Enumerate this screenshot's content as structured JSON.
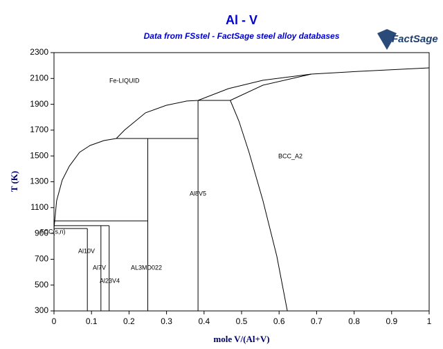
{
  "chart_data": {
    "type": "phase-diagram",
    "title": "Al - V",
    "subtitle": "Data from FSstel - FactSage steel alloy databases",
    "logo": "FactSage",
    "x_label": "mole V/(Al+V)",
    "y_label": "T (K)",
    "xlim": [
      0,
      1
    ],
    "ylim": [
      300,
      2300
    ],
    "xticks": [
      0,
      0.1,
      0.2,
      0.3,
      0.4,
      0.5,
      0.6,
      0.7,
      0.8,
      0.9,
      1
    ],
    "yticks": [
      300,
      500,
      700,
      900,
      1100,
      1300,
      1500,
      1700,
      1900,
      2100,
      2300
    ],
    "color": "#000000",
    "series": [
      {
        "x": [
          0,
          0.007,
          0.022,
          0.041,
          0.068,
          0.096,
          0.133,
          0.166,
          0.188,
          0.244,
          0.299,
          0.354,
          0.384,
          0.465,
          0.557,
          0.686,
          0.815,
          1
        ],
        "y": [
          938,
          1153,
          1313,
          1421,
          1528,
          1581,
          1619,
          1635,
          1700,
          1834,
          1892,
          1925,
          1930,
          2021,
          2086,
          2134,
          2155,
          2182
        ]
      },
      {
        "x": [
          0.47,
          0.557,
          0.686
        ],
        "y": [
          1930,
          2048,
          2134
        ]
      },
      {
        "x": [
          0.384,
          0.47
        ],
        "y": [
          1930,
          1930
        ]
      },
      {
        "x": [
          0.47,
          0.493,
          0.52,
          0.557,
          0.594,
          0.622
        ],
        "y": [
          1930,
          1769,
          1528,
          1153,
          724,
          300
        ]
      },
      {
        "x": [
          0.384,
          0.384
        ],
        "y": [
          1930,
          300
        ]
      },
      {
        "x": [
          0.166,
          0.384
        ],
        "y": [
          1635,
          1635
        ]
      },
      {
        "x": [
          0.25,
          0.25
        ],
        "y": [
          1635,
          300
        ]
      },
      {
        "x": [
          0,
          0.25
        ],
        "y": [
          997,
          997
        ]
      },
      {
        "x": [
          0,
          0.147
        ],
        "y": [
          960,
          960
        ]
      },
      {
        "x": [
          0.147,
          0.147
        ],
        "y": [
          960,
          300
        ]
      },
      {
        "x": [
          0.125,
          0.125
        ],
        "y": [
          960,
          300
        ]
      },
      {
        "x": [
          0,
          0.089
        ],
        "y": [
          938,
          938
        ]
      },
      {
        "x": [
          0.089,
          0.089
        ],
        "y": [
          938,
          300
        ]
      },
      {
        "x": [
          0,
          0
        ],
        "y": [
          938,
          670
        ]
      }
    ],
    "annotations": [
      "Fe-LIQUID",
      "BCC_A2",
      "Al8V5",
      "FCC(s,n)",
      "Al10V",
      "Al7V",
      "AL3MD022",
      "Al23V4"
    ]
  }
}
